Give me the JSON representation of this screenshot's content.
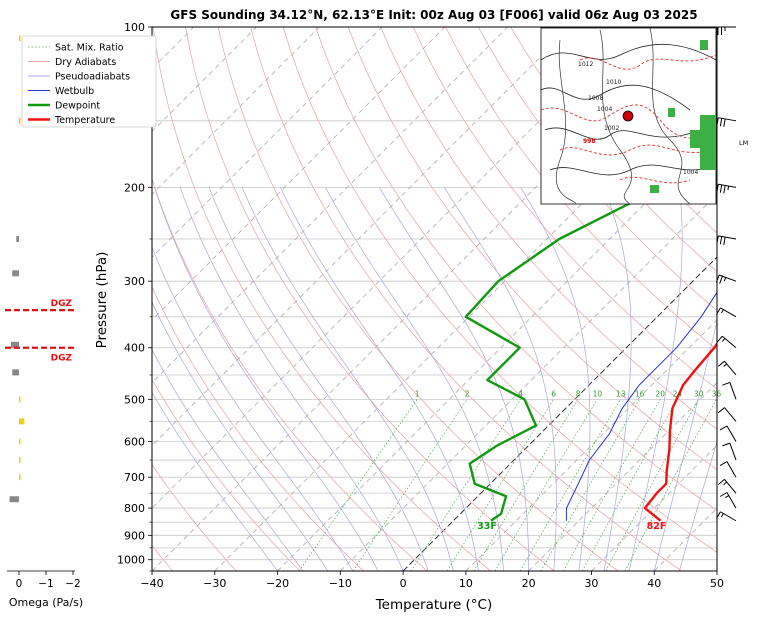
{
  "chart_data": {
    "type": "line",
    "title": "GFS Sounding 34.12°N, 62.13°E Init: 00z Aug 03 [F006] valid 06z Aug 03 2025",
    "xlabel": "Temperature (°C)",
    "ylabel": "Pressure (hPa)",
    "xlim": [
      -40,
      50
    ],
    "ylim": [
      1050,
      100
    ],
    "y_scale": "log",
    "x_ticks": [
      "−40",
      "−30",
      "−20",
      "−10",
      "0",
      "10",
      "20",
      "30",
      "40",
      "50"
    ],
    "y_ticks": [
      "100",
      "200",
      "300",
      "400",
      "500",
      "600",
      "700",
      "800",
      "900",
      "1000"
    ],
    "legend": {
      "placement": "top-left",
      "entries": [
        "Sat. Mix. Ratio",
        "Dry Adiabats",
        "Pseudoadiabats",
        "Wetbulb",
        "Dewpoint",
        "Temperature"
      ]
    },
    "series": [
      {
        "name": "Temperature",
        "color": "#ee1111",
        "points": [
          [
            33,
            845
          ],
          [
            28.5,
            800
          ],
          [
            28,
            750
          ],
          [
            28,
            720
          ],
          [
            26,
            680
          ],
          [
            23,
            620
          ],
          [
            20,
            570
          ],
          [
            17,
            520
          ],
          [
            15,
            470
          ],
          [
            14.5,
            440
          ],
          [
            14,
            400
          ],
          [
            12.5,
            350
          ],
          [
            8,
            300
          ],
          [
            3,
            250
          ],
          [
            -2,
            200
          ],
          [
            -7,
            150
          ],
          [
            -9,
            125
          ],
          [
            -10,
            100
          ]
        ]
      },
      {
        "name": "Dewpoint",
        "color": "#119911",
        "points": [
          [
            6,
            845
          ],
          [
            6.5,
            820
          ],
          [
            5.5,
            790
          ],
          [
            4.5,
            760
          ],
          [
            -2.5,
            720
          ],
          [
            -6.5,
            660
          ],
          [
            -5,
            610
          ],
          [
            -2,
            560
          ],
          [
            -8,
            500
          ],
          [
            -17,
            460
          ],
          [
            -17,
            400
          ],
          [
            -30.5,
            350
          ],
          [
            -31,
            300
          ],
          [
            -28,
            250
          ],
          [
            -20,
            200
          ],
          [
            -23,
            160
          ],
          [
            -22.5,
            125
          ],
          [
            -17.5,
            100
          ]
        ]
      },
      {
        "name": "Wetbulb",
        "color": "#2233dd",
        "points": [
          [
            18,
            845
          ],
          [
            16,
            800
          ],
          [
            14,
            720
          ],
          [
            12,
            650
          ],
          [
            11,
            580
          ],
          [
            9,
            520
          ],
          [
            8,
            470
          ],
          [
            8,
            400
          ],
          [
            7,
            350
          ],
          [
            5,
            300
          ],
          [
            1,
            250
          ],
          [
            -3,
            200
          ],
          [
            -7,
            150
          ],
          [
            -9,
            125
          ]
        ]
      }
    ],
    "point_labels": [
      {
        "text": "82F",
        "color": "#ee1111",
        "x": 33,
        "p": 860
      },
      {
        "text": "33F",
        "color": "#119911",
        "x": 6,
        "p": 860
      }
    ],
    "mixing_ratio_labels": [
      "1",
      "2",
      "4",
      "6",
      "8",
      "10",
      "13",
      "16",
      "20",
      "24",
      "30",
      "36"
    ],
    "dgz_label": "DGZ",
    "dgz_layers": [
      340,
      400
    ],
    "omega_panel": {
      "xlabel": "Omega (Pa/s)",
      "x_ticks": [
        "0",
        "−1",
        "−2"
      ],
      "bars": [
        {
          "p": 105,
          "value": -0.05,
          "color": "#f0d010"
        },
        {
          "p": 150,
          "value": -0.05,
          "color": "#f0d010"
        },
        {
          "p": 250,
          "value": 0.1,
          "color": "#888888"
        },
        {
          "p": 290,
          "value": 0.25,
          "color": "#888888"
        },
        {
          "p": 395,
          "value": 0.3,
          "color": "#888888"
        },
        {
          "p": 445,
          "value": 0.25,
          "color": "#888888"
        },
        {
          "p": 500,
          "value": -0.05,
          "color": "#f0d010"
        },
        {
          "p": 550,
          "value": -0.2,
          "color": "#f0d010"
        },
        {
          "p": 600,
          "value": -0.05,
          "color": "#f0d010"
        },
        {
          "p": 650,
          "value": -0.05,
          "color": "#f0d010"
        },
        {
          "p": 700,
          "value": -0.05,
          "color": "#f0d010"
        },
        {
          "p": 770,
          "value": 0.35,
          "color": "#888888"
        }
      ]
    },
    "inset_map": {
      "isobar_labels": [
        "998",
        "1002",
        "1004",
        "1004",
        "1008",
        "1010",
        "1012"
      ],
      "side_label": "LM"
    },
    "wind_barbs": [
      {
        "p": 100,
        "speed_kt": 25,
        "dir_deg": 270
      },
      {
        "p": 150,
        "speed_kt": 30,
        "dir_deg": 280
      },
      {
        "p": 200,
        "speed_kt": 35,
        "dir_deg": 280
      },
      {
        "p": 250,
        "speed_kt": 30,
        "dir_deg": 280
      },
      {
        "p": 300,
        "speed_kt": 25,
        "dir_deg": 290
      },
      {
        "p": 350,
        "speed_kt": 15,
        "dir_deg": 300
      },
      {
        "p": 400,
        "speed_kt": 15,
        "dir_deg": 310
      },
      {
        "p": 450,
        "speed_kt": 15,
        "dir_deg": 320
      },
      {
        "p": 500,
        "speed_kt": 10,
        "dir_deg": 340
      },
      {
        "p": 550,
        "speed_kt": 10,
        "dir_deg": 320
      },
      {
        "p": 600,
        "speed_kt": 10,
        "dir_deg": 330
      },
      {
        "p": 650,
        "speed_kt": 10,
        "dir_deg": 340
      },
      {
        "p": 700,
        "speed_kt": 10,
        "dir_deg": 330
      },
      {
        "p": 750,
        "speed_kt": 15,
        "dir_deg": 320
      },
      {
        "p": 800,
        "speed_kt": 15,
        "dir_deg": 330
      },
      {
        "p": 845,
        "speed_kt": 15,
        "dir_deg": 300
      }
    ]
  }
}
